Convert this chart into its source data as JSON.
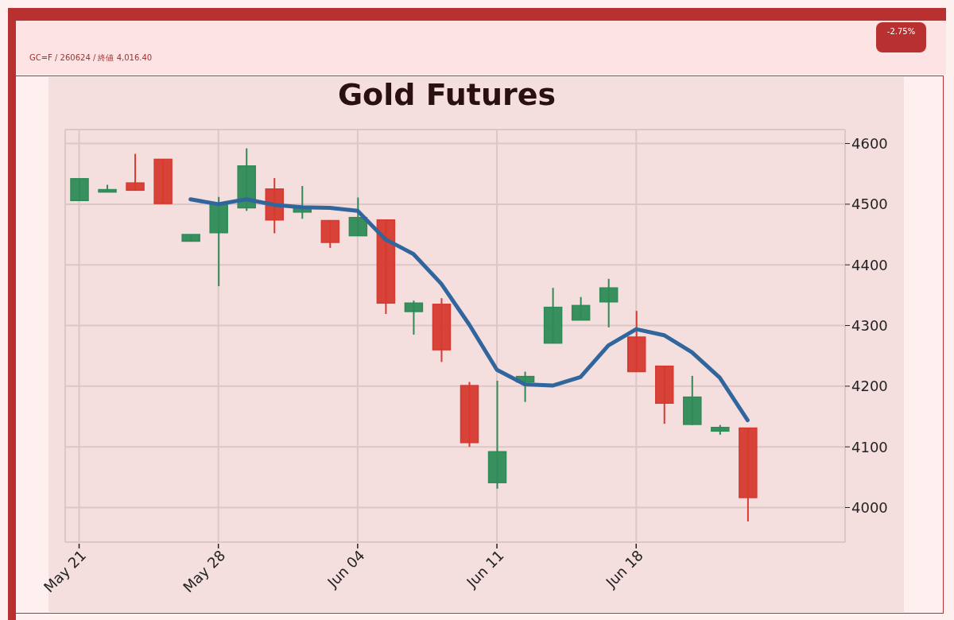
{
  "chart_data": {
    "type": "candlestick",
    "title": "Gold Futures",
    "annotations": [
      "GC=F / 260624 / 終値 4,016.40",
      "-2.75%"
    ],
    "categories": [
      "May 21",
      null,
      null,
      null,
      null,
      "May 28",
      null,
      null,
      null,
      null,
      "Jun 04",
      null,
      null,
      null,
      null,
      "Jun 11",
      null,
      null,
      null,
      null,
      "Jun 18",
      null,
      null,
      null,
      null
    ],
    "ohlc": [
      [
        4506,
        4542,
        4506,
        4542
      ],
      [
        4520,
        4532,
        4520,
        4524
      ],
      [
        4535,
        4583,
        4523,
        4523
      ],
      [
        4574,
        4574,
        4501,
        4501
      ],
      [
        4439,
        4450,
        4439,
        4450
      ],
      [
        4453,
        4512,
        4365,
        4501
      ],
      [
        4494,
        4592,
        4489,
        4563
      ],
      [
        4525,
        4543,
        4452,
        4474
      ],
      [
        4487,
        4530,
        4476,
        4494
      ],
      [
        4473,
        4473,
        4428,
        4437
      ],
      [
        4448,
        4511,
        4448,
        4478
      ],
      [
        4474,
        4474,
        4319,
        4337
      ],
      [
        4323,
        4341,
        4285,
        4337
      ],
      [
        4335,
        4345,
        4240,
        4260
      ],
      [
        4201,
        4207,
        4100,
        4107
      ],
      [
        4041,
        4209,
        4031,
        4092
      ],
      [
        4207,
        4224,
        4174,
        4216
      ],
      [
        4271,
        4362,
        4271,
        4330
      ],
      [
        4309,
        4347,
        4309,
        4333
      ],
      [
        4339,
        4377,
        4297,
        4362
      ],
      [
        4281,
        4324,
        4224,
        4224
      ],
      [
        4233,
        4233,
        4138,
        4172
      ],
      [
        4137,
        4217,
        4136,
        4182
      ],
      [
        4126,
        4136,
        4120,
        4132
      ],
      [
        4131,
        4131,
        3977,
        4016.4
      ]
    ],
    "colors": [
      "#2e8b57",
      "#2e8b57",
      "#d63a2f",
      "#d63a2f",
      "#2e8b57",
      "#2e8b57",
      "#2e8b57",
      "#d63a2f",
      "#2e8b57",
      "#d63a2f",
      "#2e8b57",
      "#d63a2f",
      "#2e8b57",
      "#d63a2f",
      "#d63a2f",
      "#2e8b57",
      "#2e8b57",
      "#2e8b57",
      "#2e8b57",
      "#2e8b57",
      "#d63a2f",
      "#d63a2f",
      "#2e8b57",
      "#2e8b57",
      "#d63a2f"
    ],
    "series": [
      {
        "type": "line",
        "color": "#31669c",
        "values": [
          null,
          null,
          null,
          null,
          4508,
          4500,
          4508,
          4499,
          4495,
          4494,
          4489,
          4442,
          4418,
          4369,
          4302,
          4227,
          4203,
          4201,
          4215,
          4267,
          4294,
          4284,
          4256,
          4214,
          4144
        ]
      }
    ],
    "ylim": [
      3943,
      4623
    ],
    "yticks": [
      4000,
      4100,
      4200,
      4300,
      4400,
      4500,
      4600
    ],
    "grid": true
  }
}
